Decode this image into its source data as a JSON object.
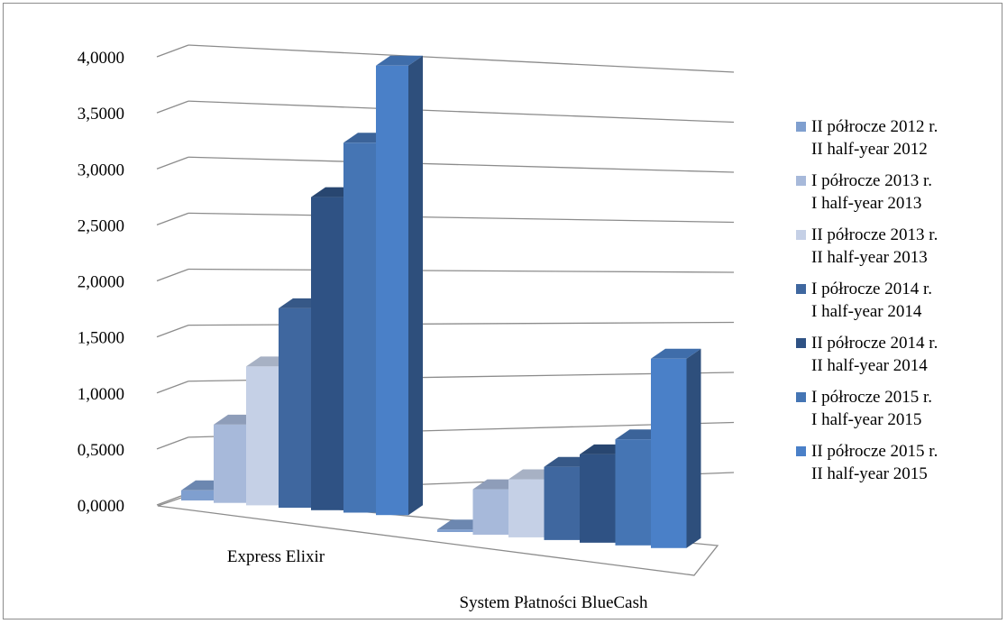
{
  "chart_data": {
    "type": "bar",
    "style": "3d-clustered-column",
    "categories": [
      "Express Elixir",
      "System Płatności BlueCash"
    ],
    "series": [
      {
        "name": "II półrocze 2012 r.",
        "name_en": "II half-year 2012",
        "values": [
          0.08,
          0.02
        ],
        "color": "#7f9fcf"
      },
      {
        "name": "I półrocze 2013 r.",
        "name_en": "I half-year 2013",
        "values": [
          0.62,
          0.36
        ],
        "color": "#a7b9da"
      },
      {
        "name": "II półrocze 2013 r.",
        "name_en": "II half-year 2013",
        "values": [
          1.1,
          0.46
        ],
        "color": "#c5d0e6"
      },
      {
        "name": "I półrocze 2014 r.",
        "name_en": "I half-year 2014",
        "values": [
          1.58,
          0.58
        ],
        "color": "#3f679f"
      },
      {
        "name": "II półrocze 2014 r.",
        "name_en": "II half-year 2014",
        "values": [
          2.48,
          0.7
        ],
        "color": "#2f5284"
      },
      {
        "name": "I półrocze 2015 r.",
        "name_en": "I half-year 2015",
        "values": [
          2.93,
          0.84
        ],
        "color": "#4575b4"
      },
      {
        "name": "II półrocze 2015 r.",
        "name_en": "II half-year 2015",
        "values": [
          3.56,
          1.5
        ],
        "color": "#4a80c8"
      }
    ],
    "ylim": [
      0,
      4
    ],
    "yticks": [
      "0,0000",
      "0,5000",
      "1,0000",
      "1,5000",
      "2,0000",
      "2,5000",
      "3,0000",
      "3,5000",
      "4,0000"
    ],
    "grid": true,
    "legend_position": "right",
    "title": "",
    "xlabel": "",
    "ylabel": ""
  }
}
